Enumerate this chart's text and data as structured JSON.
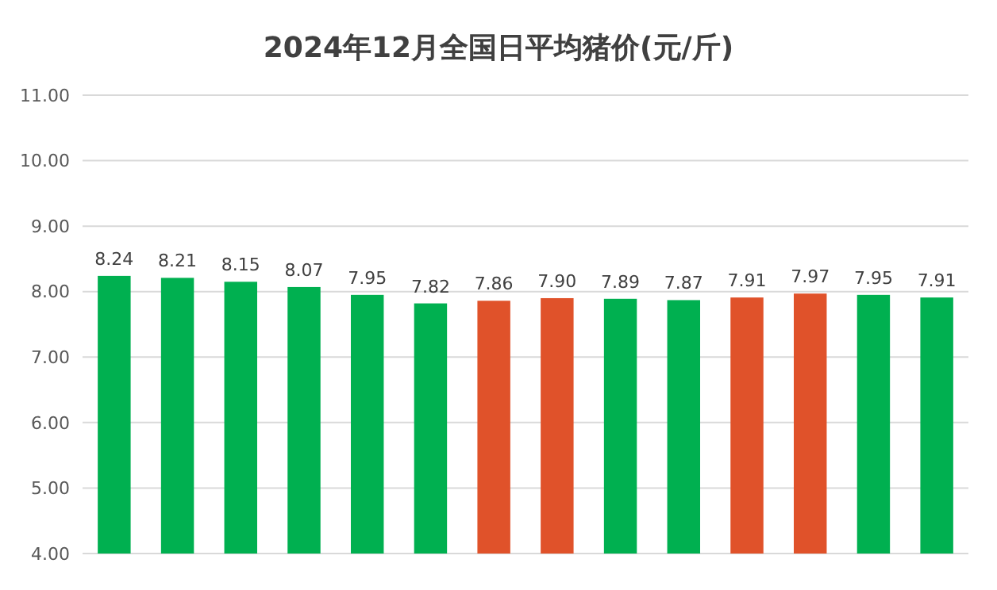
{
  "chart_data": {
    "type": "bar",
    "title": "2024年12月全国日平均猪价(元/斤)",
    "categories": [
      null,
      null,
      null,
      null,
      null,
      null,
      null,
      null,
      null,
      null,
      null,
      null,
      null,
      null
    ],
    "values": [
      8.24,
      8.21,
      8.15,
      8.07,
      7.95,
      7.82,
      7.86,
      7.9,
      7.89,
      7.87,
      7.91,
      7.97,
      7.95,
      7.91
    ],
    "value_labels": [
      "8.24",
      "8.21",
      "8.15",
      "8.07",
      "7.95",
      "7.82",
      "7.86",
      "7.90",
      "7.89",
      "7.87",
      "7.91",
      "7.97",
      "7.95",
      "7.91"
    ],
    "colors": [
      "#00b050",
      "#00b050",
      "#00b050",
      "#00b050",
      "#00b050",
      "#00b050",
      "#e0522a",
      "#e0522a",
      "#00b050",
      "#00b050",
      "#e0522a",
      "#e0522a",
      "#00b050",
      "#00b050"
    ],
    "ylim": [
      4,
      11
    ],
    "yticks": [
      {
        "value": 4,
        "label": "4.00"
      },
      {
        "value": 5,
        "label": "5.00"
      },
      {
        "value": 6,
        "label": "6.00"
      },
      {
        "value": 7,
        "label": "7.00"
      },
      {
        "value": 8,
        "label": "8.00"
      },
      {
        "value": 9,
        "label": "9.00"
      },
      {
        "value": 10,
        "label": "10.00"
      },
      {
        "value": 11,
        "label": "11.00"
      }
    ],
    "grid": "y"
  }
}
